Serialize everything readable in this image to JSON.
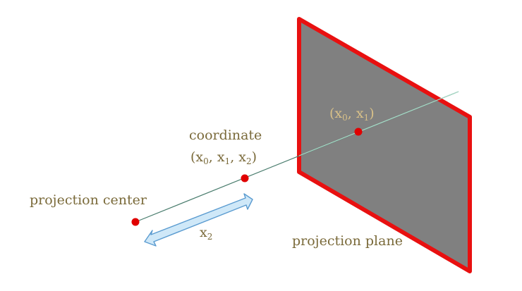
{
  "labels": {
    "projection_center": "projection center",
    "coordinate_title": "coordinate",
    "coordinate_tuple": "(x0, x1, x2)",
    "projected_point": "(x0, x1)",
    "distance": "x2",
    "projection_plane": "projection plane"
  },
  "colors": {
    "plane_fill": "#808080",
    "plane_border": "#e81010",
    "point": "#e00000",
    "ray": "#4a7d6e",
    "arrow_fill": "#cfe8f8",
    "arrow_stroke": "#5a9bd0",
    "text": "#7a6a3a",
    "projected_text": "#d8c088"
  }
}
